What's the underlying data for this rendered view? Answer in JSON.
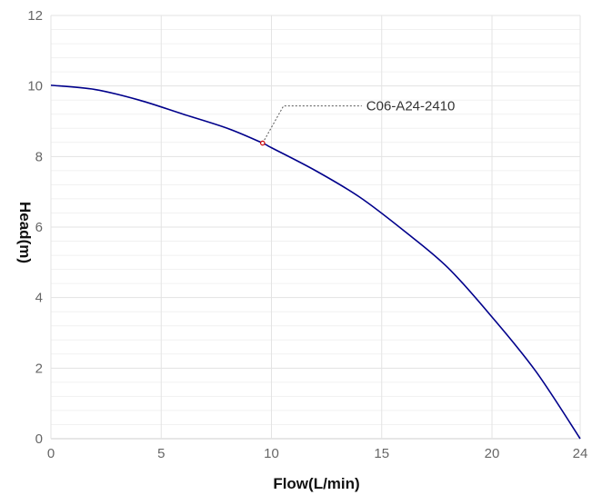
{
  "chart_data": {
    "type": "line",
    "title": "",
    "xlabel": "Flow(L/min)",
    "ylabel": "Head(m)",
    "xlim": [
      0,
      24
    ],
    "ylim": [
      0,
      12
    ],
    "x_ticks": [
      0,
      5,
      10,
      15,
      20,
      24
    ],
    "y_ticks": [
      0,
      2,
      4,
      6,
      8,
      10,
      12
    ],
    "grid": true,
    "series": [
      {
        "name": "",
        "color": "#00008b",
        "x": [
          0,
          2,
          4,
          6,
          8,
          9.6,
          10,
          12,
          14,
          16,
          18,
          20,
          22,
          24
        ],
        "y": [
          10.02,
          9.9,
          9.6,
          9.2,
          8.8,
          8.38,
          8.25,
          7.6,
          6.85,
          5.9,
          4.85,
          3.45,
          1.9,
          0
        ]
      }
    ],
    "annotation": {
      "text": "C06-A24-2410",
      "x": 9.6,
      "y": 8.38,
      "color": "#cc0000"
    }
  }
}
